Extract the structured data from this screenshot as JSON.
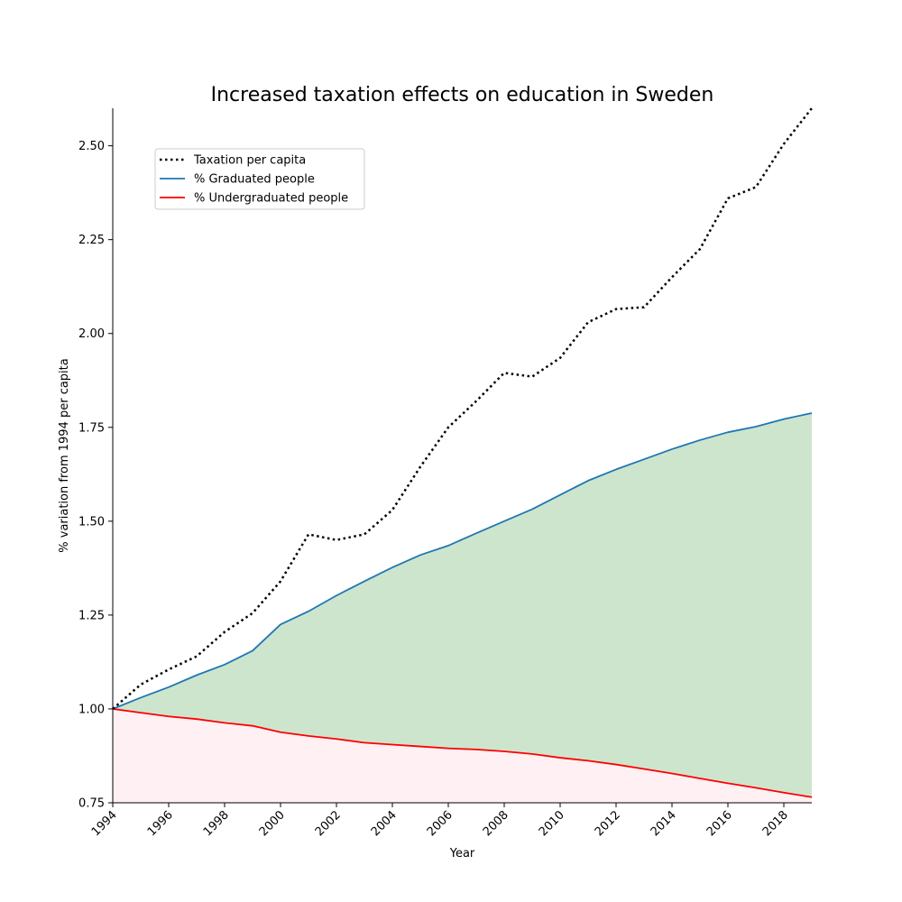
{
  "chart_data": {
    "type": "line",
    "title": "Increased taxation effects on education in Sweden",
    "xlabel": "Year",
    "ylabel": "% variation from 1994 per capita",
    "xlim": [
      1994,
      2019
    ],
    "ylim": [
      0.75,
      2.6
    ],
    "x_ticks": [
      "1994",
      "1996",
      "1998",
      "2000",
      "2002",
      "2004",
      "2006",
      "2008",
      "2010",
      "2012",
      "2014",
      "2016",
      "2018"
    ],
    "y_ticks": [
      "0.75",
      "1.00",
      "1.25",
      "1.50",
      "1.75",
      "2.00",
      "2.25",
      "2.50"
    ],
    "legend_position": "upper-left",
    "grid": false,
    "x": [
      1994,
      1995,
      1996,
      1997,
      1998,
      1999,
      2000,
      2001,
      2002,
      2003,
      2004,
      2005,
      2006,
      2007,
      2008,
      2009,
      2010,
      2011,
      2012,
      2013,
      2014,
      2015,
      2016,
      2017,
      2018,
      2019
    ],
    "series": [
      {
        "name": "Taxation per capita",
        "color": "#000000",
        "style": "dotted",
        "values": [
          1.0,
          1.065,
          1.105,
          1.14,
          1.205,
          1.255,
          1.34,
          1.465,
          1.45,
          1.465,
          1.53,
          1.645,
          1.75,
          1.82,
          1.895,
          1.885,
          1.935,
          2.03,
          2.065,
          2.07,
          2.15,
          2.225,
          2.36,
          2.39,
          2.505,
          2.6
        ]
      },
      {
        "name": "% Graduated people",
        "color": "#1f77b4",
        "style": "solid",
        "values": [
          1.0,
          1.03,
          1.058,
          1.09,
          1.118,
          1.155,
          1.225,
          1.26,
          1.302,
          1.34,
          1.377,
          1.41,
          1.435,
          1.468,
          1.5,
          1.532,
          1.57,
          1.608,
          1.638,
          1.665,
          1.692,
          1.716,
          1.737,
          1.752,
          1.772,
          1.788
        ]
      },
      {
        "name": "% Undergraduated people",
        "color": "#ff0000",
        "style": "solid",
        "values": [
          1.0,
          0.99,
          0.98,
          0.973,
          0.963,
          0.955,
          0.938,
          0.928,
          0.92,
          0.91,
          0.905,
          0.9,
          0.895,
          0.892,
          0.887,
          0.88,
          0.87,
          0.862,
          0.852,
          0.84,
          0.828,
          0.815,
          0.802,
          0.79,
          0.777,
          0.765
        ]
      }
    ],
    "fills": {
      "between_graduated_undergraduated": "#cde5cd",
      "below_undergraduated": "#fff0f3"
    }
  }
}
